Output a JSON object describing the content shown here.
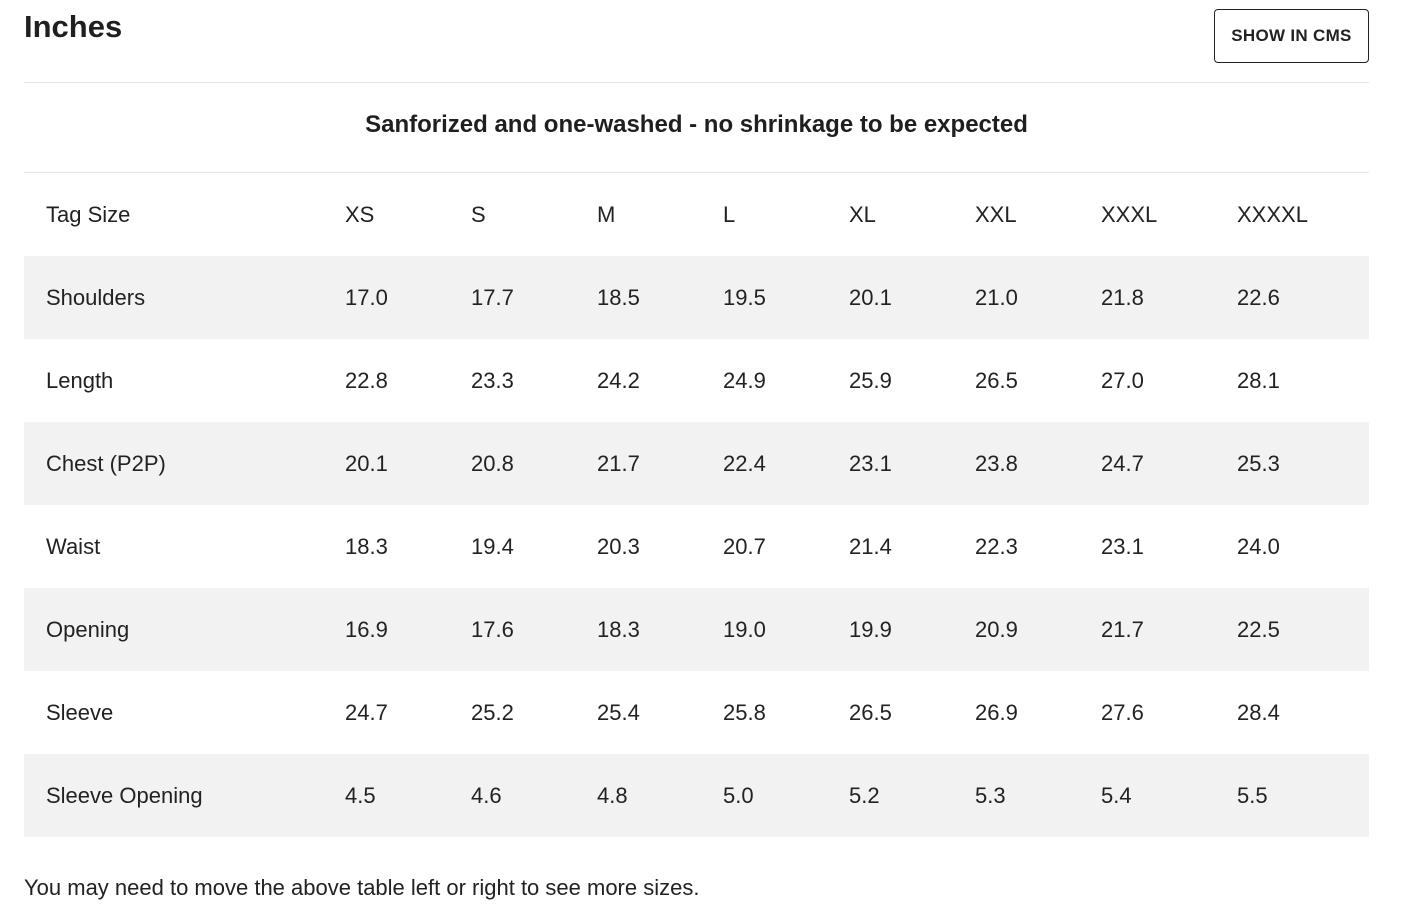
{
  "header": {
    "title": "Inches",
    "cms_button_label": "SHOW IN CMS"
  },
  "notice": "Sanforized and one-washed - no shrinkage to be expected",
  "table": {
    "header_label": "Tag Size",
    "sizes": [
      "XS",
      "S",
      "M",
      "L",
      "XL",
      "XXL",
      "XXXL",
      "XXXXL"
    ],
    "rows": [
      {
        "label": "Shoulders",
        "values": [
          "17.0",
          "17.7",
          "18.5",
          "19.5",
          "20.1",
          "21.0",
          "21.8",
          "22.6"
        ]
      },
      {
        "label": "Length",
        "values": [
          "22.8",
          "23.3",
          "24.2",
          "24.9",
          "25.9",
          "26.5",
          "27.0",
          "28.1"
        ]
      },
      {
        "label": "Chest (P2P)",
        "values": [
          "20.1",
          "20.8",
          "21.7",
          "22.4",
          "23.1",
          "23.8",
          "24.7",
          "25.3"
        ]
      },
      {
        "label": "Waist",
        "values": [
          "18.3",
          "19.4",
          "20.3",
          "20.7",
          "21.4",
          "22.3",
          "23.1",
          "24.0"
        ]
      },
      {
        "label": "Opening",
        "values": [
          "16.9",
          "17.6",
          "18.3",
          "19.0",
          "19.9",
          "20.9",
          "21.7",
          "22.5"
        ]
      },
      {
        "label": "Sleeve",
        "values": [
          "24.7",
          "25.2",
          "25.4",
          "25.8",
          "26.5",
          "26.9",
          "27.6",
          "28.4"
        ]
      },
      {
        "label": "Sleeve Opening",
        "values": [
          "4.5",
          "4.6",
          "4.8",
          "5.0",
          "5.2",
          "5.3",
          "5.4",
          "5.5"
        ]
      }
    ]
  },
  "footnote": "You may need to move the above table left or right to see more sizes."
}
